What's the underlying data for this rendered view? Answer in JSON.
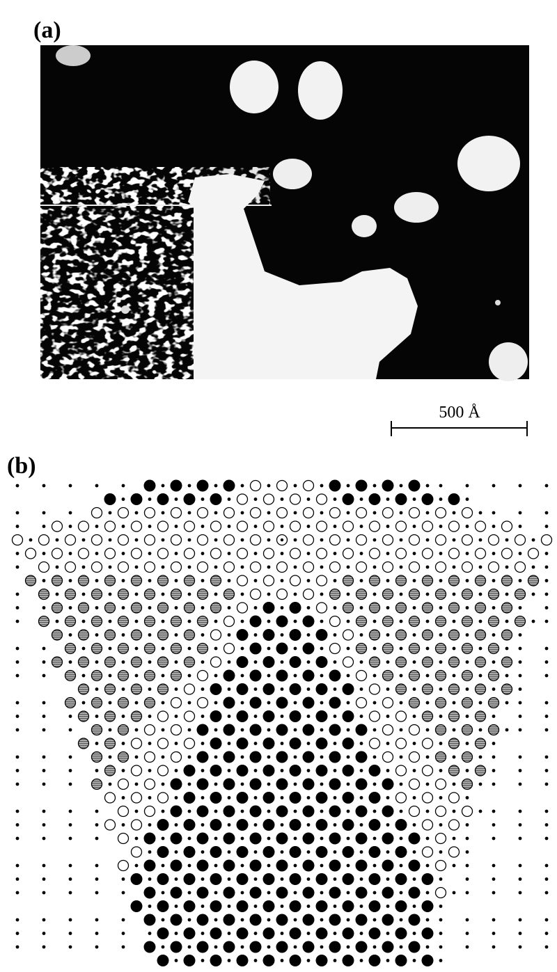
{
  "panels": [
    {
      "label": "(a)",
      "scale_bar": "500 Å"
    },
    {
      "label": "(b)"
    }
  ]
}
